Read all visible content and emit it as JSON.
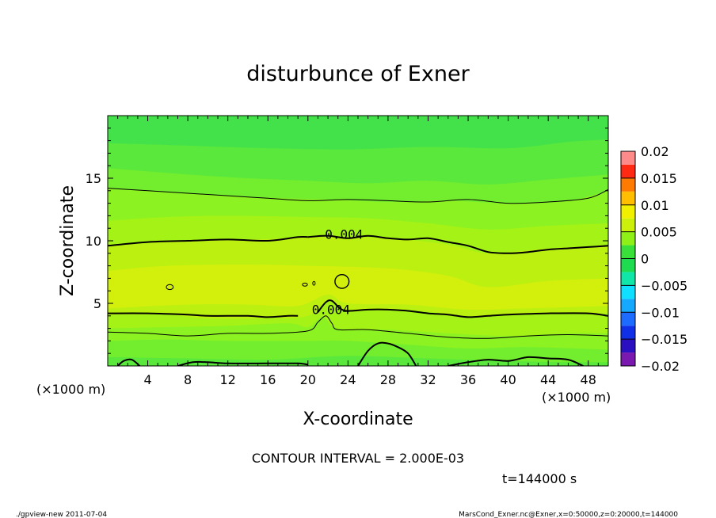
{
  "chart_data": {
    "type": "contour",
    "title": "disturbunce of Exner",
    "xlabel": "X-coordinate",
    "ylabel": "Z-coordinate",
    "x_unit": "(×1000 m)",
    "y_unit": "(×1000 m)",
    "xlim": [
      0,
      50
    ],
    "ylim": [
      0,
      20
    ],
    "xticks": [
      4,
      8,
      12,
      16,
      20,
      24,
      28,
      32,
      36,
      40,
      44,
      48
    ],
    "yticks": [
      5,
      10,
      15
    ],
    "contour_interval_text": "CONTOUR INTERVAL = 2.000E-03",
    "time_text": "t=144000  s",
    "colorbar": {
      "ticks": [
        0.02,
        0.015,
        0.01,
        0.005,
        0,
        -0.005,
        -0.01,
        -0.015,
        -0.02
      ],
      "tick_labels": [
        "0.02",
        "0.015",
        "0.01",
        "0.005",
        "0",
        "−0.005",
        "−0.01",
        "−0.015",
        "−0.02"
      ],
      "range": [
        -0.02,
        0.02
      ],
      "levels": [
        {
          "from": -0.02,
          "to": -0.0175,
          "color": "#7a18b0"
        },
        {
          "from": -0.0175,
          "to": -0.015,
          "color": "#2a10c0"
        },
        {
          "from": -0.015,
          "to": -0.0125,
          "color": "#1030e8"
        },
        {
          "from": -0.0125,
          "to": -0.01,
          "color": "#1e6cff"
        },
        {
          "from": -0.01,
          "to": -0.0075,
          "color": "#14a8ff"
        },
        {
          "from": -0.0075,
          "to": -0.005,
          "color": "#10e0ff"
        },
        {
          "from": -0.005,
          "to": -0.0025,
          "color": "#10e6a8"
        },
        {
          "from": -0.0025,
          "to": 0,
          "color": "#1edc50"
        },
        {
          "from": 0,
          "to": 0.0025,
          "color": "#3ae03a"
        },
        {
          "from": 0.0025,
          "to": 0.005,
          "color": "#8ff018"
        },
        {
          "from": 0.005,
          "to": 0.0075,
          "color": "#cdf00a"
        },
        {
          "from": 0.0075,
          "to": 0.01,
          "color": "#f0f000"
        },
        {
          "from": 0.01,
          "to": 0.0125,
          "color": "#ffbe00"
        },
        {
          "from": 0.0125,
          "to": 0.015,
          "color": "#ff7a00"
        },
        {
          "from": 0.015,
          "to": 0.0175,
          "color": "#ff2a14"
        },
        {
          "from": 0.0175,
          "to": 0.02,
          "color": "#ff8a8a"
        }
      ]
    },
    "bands": [
      {
        "color": "#43e24a",
        "boundary": [
          [
            0,
            20
          ],
          [
            50,
            20
          ]
        ]
      },
      {
        "color": "#5ae83c",
        "boundary": [
          [
            0,
            17.8
          ],
          [
            8,
            17.6
          ],
          [
            16,
            17.4
          ],
          [
            24,
            17.3
          ],
          [
            32,
            17.5
          ],
          [
            40,
            17.4
          ],
          [
            46,
            17.9
          ],
          [
            50,
            18.1
          ]
        ]
      },
      {
        "color": "#73ee2e",
        "boundary": [
          [
            0,
            15.8
          ],
          [
            8,
            15.3
          ],
          [
            14,
            15.0
          ],
          [
            20,
            14.8
          ],
          [
            26,
            14.6
          ],
          [
            32,
            14.8
          ],
          [
            38,
            14.5
          ],
          [
            44,
            14.9
          ],
          [
            50,
            15.3
          ]
        ]
      },
      {
        "color": "#8cf222",
        "boundary": [
          [
            0,
            14.2
          ],
          [
            6,
            13.9
          ],
          [
            14,
            13.5
          ],
          [
            22,
            13.3
          ],
          [
            28,
            13.1
          ],
          [
            34,
            13.2
          ],
          [
            40,
            13.0
          ],
          [
            46,
            13.2
          ],
          [
            50,
            14.0
          ]
        ]
      },
      {
        "color": "#a4f216",
        "boundary": [
          [
            0,
            11.6
          ],
          [
            6,
            11.9
          ],
          [
            12,
            12.0
          ],
          [
            20,
            11.9
          ],
          [
            26,
            11.8
          ],
          [
            32,
            11.4
          ],
          [
            38,
            10.9
          ],
          [
            44,
            11.2
          ],
          [
            50,
            11.4
          ]
        ]
      },
      {
        "color": "#bcf010",
        "boundary": [
          [
            0,
            9.6
          ],
          [
            6,
            9.9
          ],
          [
            14,
            10.1
          ],
          [
            22,
            10.3
          ],
          [
            28,
            10.2
          ],
          [
            34,
            9.7
          ],
          [
            38,
            9.0
          ],
          [
            44,
            9.4
          ],
          [
            50,
            9.6
          ]
        ]
      },
      {
        "color": "#d2f00c",
        "boundary": [
          [
            0,
            7.6
          ],
          [
            6,
            8.0
          ],
          [
            14,
            8.1
          ],
          [
            20,
            8.0
          ],
          [
            28,
            7.8
          ],
          [
            34,
            7.2
          ],
          [
            38,
            6.3
          ],
          [
            44,
            6.8
          ],
          [
            50,
            7.0
          ]
        ]
      },
      {
        "color": "#bcf010",
        "boundary": [
          [
            0,
            4.6
          ],
          [
            8,
            4.9
          ],
          [
            14,
            4.9
          ],
          [
            19,
            4.8
          ],
          [
            22,
            5.7
          ],
          [
            24,
            5.0
          ],
          [
            30,
            4.9
          ],
          [
            36,
            4.5
          ],
          [
            42,
            4.6
          ],
          [
            50,
            4.8
          ]
        ]
      },
      {
        "color": "#a4f216",
        "boundary": [
          [
            0,
            4.1
          ],
          [
            6,
            4.1
          ],
          [
            10,
            3.8
          ],
          [
            16,
            3.8
          ],
          [
            20,
            4.0
          ],
          [
            22,
            5.2
          ],
          [
            24,
            4.5
          ],
          [
            30,
            4.5
          ],
          [
            36,
            4.0
          ],
          [
            42,
            4.1
          ],
          [
            50,
            4.2
          ]
        ]
      },
      {
        "color": "#8cf222",
        "boundary": [
          [
            0,
            3.0
          ],
          [
            6,
            3.1
          ],
          [
            12,
            3.2
          ],
          [
            18,
            3.4
          ],
          [
            20,
            3.1
          ],
          [
            21.5,
            3.9
          ],
          [
            23,
            3.0
          ],
          [
            28,
            2.9
          ],
          [
            34,
            2.6
          ],
          [
            40,
            2.4
          ],
          [
            46,
            2.6
          ],
          [
            50,
            2.6
          ]
        ]
      },
      {
        "color": "#73ee2e",
        "boundary": [
          [
            0,
            2.0
          ],
          [
            6,
            2.1
          ],
          [
            12,
            2.0
          ],
          [
            20,
            2.0
          ],
          [
            24,
            2.0
          ],
          [
            30,
            1.7
          ],
          [
            36,
            1.4
          ],
          [
            42,
            1.5
          ],
          [
            50,
            1.3
          ]
        ]
      },
      {
        "color": "#5ae83c",
        "boundary": [
          [
            0,
            0.7
          ],
          [
            8,
            0.6
          ],
          [
            16,
            0.5
          ],
          [
            24,
            0.8
          ],
          [
            32,
            0.6
          ],
          [
            40,
            0.4
          ],
          [
            46,
            0.3
          ],
          [
            50,
            0.3
          ]
        ]
      }
    ],
    "contours": [
      {
        "level": 0.002,
        "width": 1,
        "points": [
          [
            0,
            14.2
          ],
          [
            4,
            14.0
          ],
          [
            8,
            13.8
          ],
          [
            12,
            13.6
          ],
          [
            16,
            13.4
          ],
          [
            20,
            13.2
          ],
          [
            24,
            13.3
          ],
          [
            28,
            13.2
          ],
          [
            32,
            13.1
          ],
          [
            36,
            13.3
          ],
          [
            40,
            13.0
          ],
          [
            44,
            13.1
          ],
          [
            48,
            13.4
          ],
          [
            50,
            14.1
          ]
        ]
      },
      {
        "level": 0.004,
        "width": 2,
        "points": [
          [
            0,
            9.6
          ],
          [
            4,
            9.9
          ],
          [
            8,
            10.0
          ],
          [
            12,
            10.1
          ],
          [
            16,
            10.0
          ],
          [
            19,
            10.3
          ],
          [
            20,
            10.3
          ]
        ]
      },
      {
        "level": 0.004,
        "width": 2,
        "points": [
          [
            20,
            10.3
          ],
          [
            22,
            10.4
          ],
          [
            24,
            10.2
          ],
          [
            26,
            10.4
          ],
          [
            28,
            10.2
          ],
          [
            30,
            10.1
          ],
          [
            32,
            10.2
          ],
          [
            34,
            9.9
          ],
          [
            36,
            9.6
          ],
          [
            38,
            9.1
          ],
          [
            40,
            9.0
          ],
          [
            42,
            9.1
          ],
          [
            44,
            9.3
          ],
          [
            46,
            9.4
          ],
          [
            48,
            9.5
          ],
          [
            50,
            9.6
          ]
        ]
      },
      {
        "level": 0.004,
        "width": 2,
        "points": [
          [
            0,
            4.2
          ],
          [
            4,
            4.2
          ],
          [
            8,
            4.1
          ],
          [
            10,
            4.0
          ],
          [
            14,
            4.0
          ],
          [
            16,
            3.9
          ],
          [
            18,
            4.0
          ],
          [
            19,
            4.0
          ]
        ]
      },
      {
        "level": 0.004,
        "width": 2,
        "points": [
          [
            21,
            4.3
          ],
          [
            21.8,
            5.1
          ],
          [
            22.4,
            5.2
          ],
          [
            23.2,
            4.6
          ],
          [
            24,
            4.4
          ],
          [
            26,
            4.5
          ],
          [
            28,
            4.5
          ],
          [
            30,
            4.4
          ],
          [
            32,
            4.2
          ],
          [
            34,
            4.1
          ],
          [
            36,
            3.9
          ],
          [
            38,
            4.0
          ],
          [
            40,
            4.1
          ],
          [
            44,
            4.2
          ],
          [
            48,
            4.2
          ],
          [
            50,
            4.0
          ]
        ]
      },
      {
        "level": 0.002,
        "width": 1,
        "points": [
          [
            0,
            2.7
          ],
          [
            4,
            2.6
          ],
          [
            8,
            2.4
          ],
          [
            12,
            2.6
          ],
          [
            16,
            2.6
          ],
          [
            20,
            2.8
          ],
          [
            21,
            3.5
          ],
          [
            21.8,
            4.0
          ],
          [
            22.4,
            3.4
          ],
          [
            23,
            2.9
          ],
          [
            26,
            2.9
          ],
          [
            30,
            2.6
          ],
          [
            34,
            2.3
          ],
          [
            38,
            2.2
          ],
          [
            42,
            2.4
          ],
          [
            46,
            2.5
          ],
          [
            50,
            2.4
          ]
        ]
      },
      {
        "level": 0,
        "width": 2,
        "points": [
          [
            1,
            0
          ],
          [
            1.6,
            0.4
          ],
          [
            2.4,
            0.5
          ],
          [
            3.2,
            0
          ]
        ]
      },
      {
        "level": 0,
        "width": 2,
        "points": [
          [
            7,
            0
          ],
          [
            8.5,
            0.3
          ],
          [
            10,
            0.3
          ],
          [
            12,
            0.2
          ],
          [
            16,
            0.2
          ],
          [
            19,
            0.2
          ],
          [
            20,
            0.1
          ]
        ]
      },
      {
        "level": 0,
        "width": 2,
        "points": [
          [
            25,
            0
          ],
          [
            26,
            1.2
          ],
          [
            27,
            1.8
          ],
          [
            28,
            1.8
          ],
          [
            29,
            1.5
          ],
          [
            30,
            1.0
          ],
          [
            30.8,
            0
          ]
        ]
      },
      {
        "level": 0,
        "width": 2,
        "points": [
          [
            34,
            0
          ],
          [
            36,
            0.3
          ],
          [
            38,
            0.5
          ],
          [
            40,
            0.4
          ],
          [
            42,
            0.7
          ],
          [
            44,
            0.6
          ],
          [
            46,
            0.5
          ],
          [
            47.5,
            0
          ]
        ]
      }
    ],
    "closed_contours": [
      {
        "cx": 6.2,
        "cy": 6.3,
        "rx": 0.35,
        "ry": 0.2,
        "width": 1
      },
      {
        "cx": 19.7,
        "cy": 6.5,
        "rx": 0.25,
        "ry": 0.12,
        "width": 1
      },
      {
        "cx": 20.6,
        "cy": 6.6,
        "rx": 0.12,
        "ry": 0.15,
        "width": 1
      },
      {
        "cx": 23.4,
        "cy": 6.75,
        "rx": 0.7,
        "ry": 0.55,
        "width": 1.4
      }
    ],
    "contour_labels": [
      {
        "text": "0.004",
        "x": 23.6,
        "y": 10.15
      },
      {
        "text": "0.004",
        "x": 22.3,
        "y": 4.15
      }
    ]
  },
  "footer": {
    "left": "./gpview-new   2011-07-04",
    "right": "MarsCond_Exner.nc@Exner,x=0:50000,z=0:20000,t=144000"
  }
}
